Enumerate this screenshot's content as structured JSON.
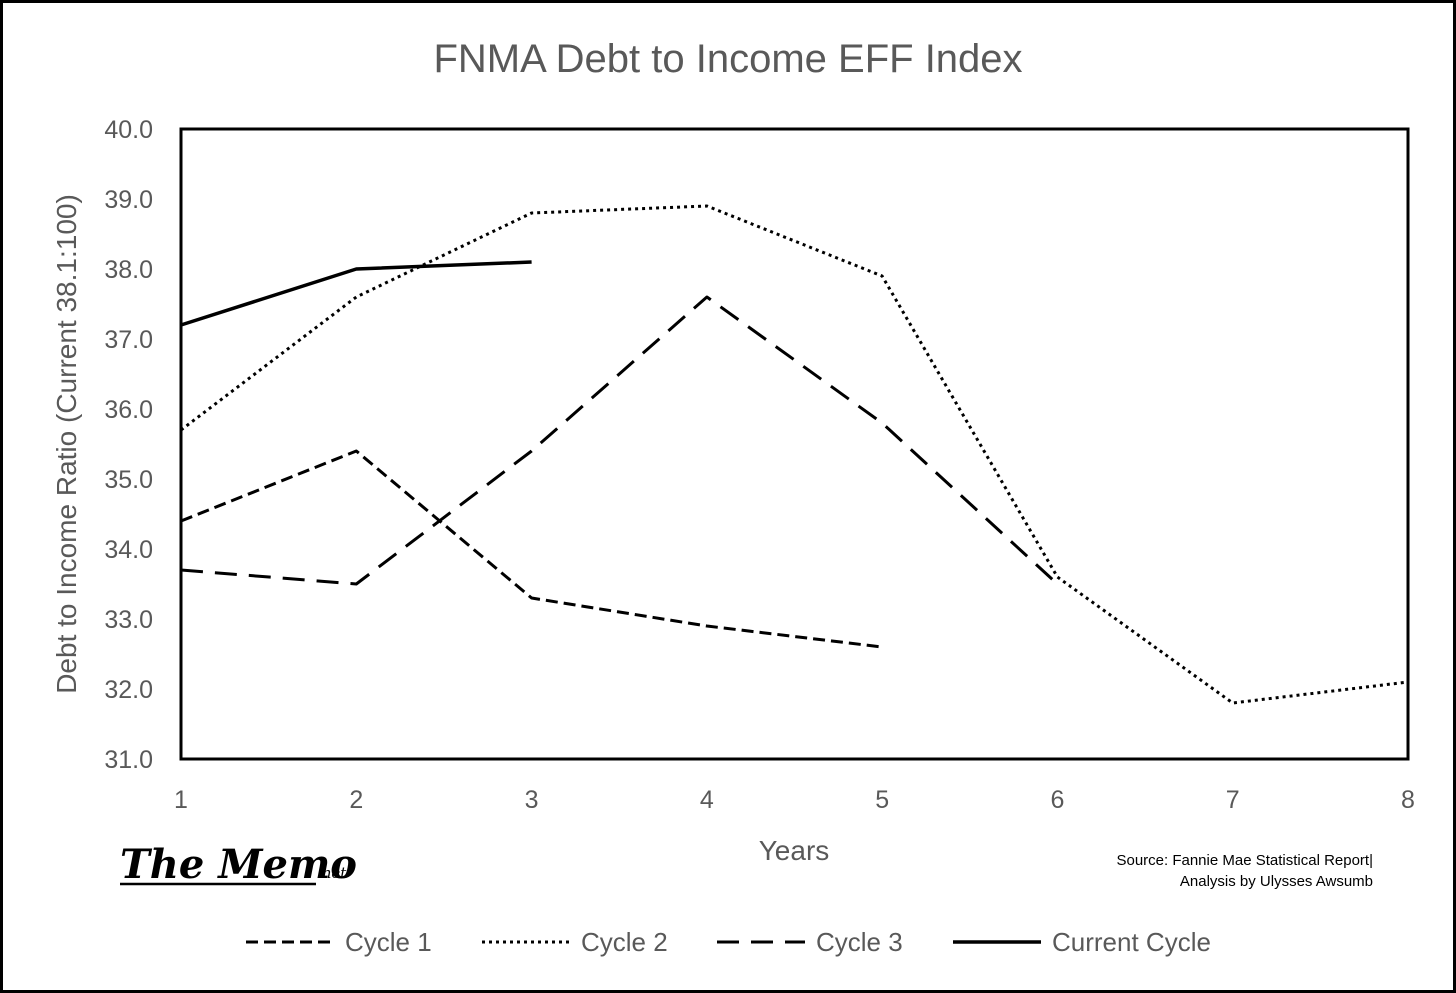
{
  "chart_data": {
    "type": "line",
    "title": "FNMA Debt to Income EFF Index",
    "xlabel": "Years",
    "ylabel": "Debt to Income Ratio (Current 38.1:100)",
    "x": [
      1,
      2,
      3,
      4,
      5,
      6,
      7,
      8
    ],
    "x_tick_labels": [
      "1",
      "2",
      "3",
      "4",
      "5",
      "6",
      "7",
      "8"
    ],
    "xlim": [
      1,
      8
    ],
    "ylim": [
      31.0,
      40.0
    ],
    "y_tick_labels": [
      "31.0",
      "32.0",
      "33.0",
      "34.0",
      "35.0",
      "36.0",
      "37.0",
      "38.0",
      "39.0",
      "40.0"
    ],
    "grid": false,
    "legend_position": "bottom",
    "series": [
      {
        "name": "Cycle 1",
        "style": "dashed",
        "values": [
          34.4,
          35.4,
          33.3,
          32.9,
          32.6,
          null,
          null,
          null
        ]
      },
      {
        "name": "Cycle 2",
        "style": "dotted",
        "values": [
          35.7,
          37.6,
          38.8,
          38.9,
          37.9,
          33.6,
          31.8,
          32.1
        ]
      },
      {
        "name": "Cycle 3",
        "style": "long-dashed",
        "values": [
          33.7,
          33.5,
          35.4,
          37.6,
          35.8,
          33.5,
          null,
          null
        ]
      },
      {
        "name": "Current Cycle",
        "style": "solid",
        "values": [
          37.2,
          38.0,
          38.1,
          null,
          null,
          null,
          null,
          null
        ]
      }
    ],
    "line_color": "#000000",
    "text_color": "#595959"
  },
  "logo": {
    "main": "The Memo",
    "suffix": ".net"
  },
  "source": {
    "line1": "Source: Fannie Mae Statistical Report|",
    "line2": "Analysis by Ulysses Awsumb"
  }
}
